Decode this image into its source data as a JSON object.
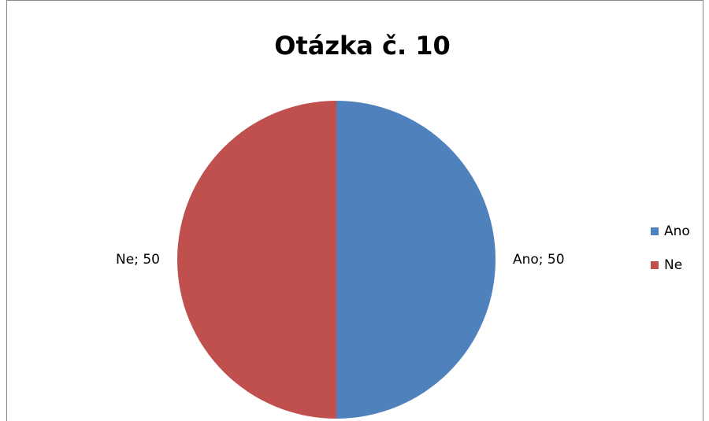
{
  "chart_data": {
    "type": "pie",
    "title": "Otázka č. 10",
    "categories": [
      "Ano",
      "Ne"
    ],
    "values": [
      50,
      50
    ],
    "value_labels": [
      "Ano; 50",
      "Ne; 50"
    ],
    "colors": [
      "#4f81bd",
      "#c0504d"
    ],
    "legend": "right"
  }
}
